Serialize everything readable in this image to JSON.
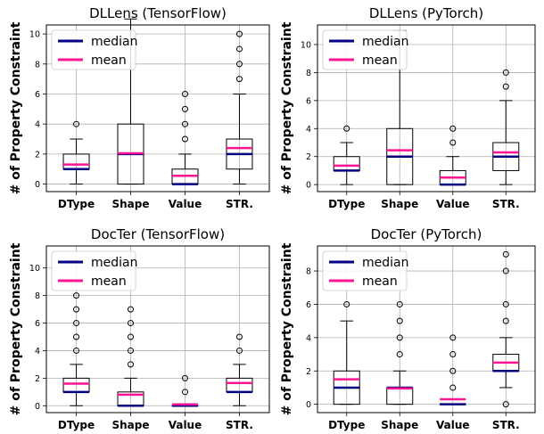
{
  "chart_data": [
    {
      "type": "box",
      "title": "DLLens (TensorFlow)",
      "ylabel": "# of Property Constraint",
      "categories": [
        "DType",
        "Shape",
        "Value",
        "STR."
      ],
      "yticks": [
        0,
        2,
        4,
        6,
        8,
        10
      ],
      "ylim": [
        -0.5,
        10.6
      ],
      "grid": true,
      "legend": {
        "position": "top-left",
        "entries": [
          {
            "label": "median",
            "color": "#000080"
          },
          {
            "label": "mean",
            "color": "#ff1493"
          }
        ]
      },
      "boxes": [
        {
          "q1": 1,
          "median": 1,
          "mean": 1.3,
          "q3": 2,
          "whisker_low": 0,
          "whisker_high": 3,
          "outliers": [
            4
          ]
        },
        {
          "q1": 0,
          "median": 2,
          "mean": 2.05,
          "q3": 4,
          "whisker_low": 0,
          "whisker_high": 11,
          "outliers": []
        },
        {
          "q1": 0,
          "median": 0,
          "mean": 0.55,
          "q3": 1,
          "whisker_low": 0,
          "whisker_high": 2,
          "outliers": [
            3,
            4,
            5,
            6
          ]
        },
        {
          "q1": 1,
          "median": 2,
          "mean": 2.4,
          "q3": 3,
          "whisker_low": 0,
          "whisker_high": 6,
          "outliers": [
            7,
            8,
            9,
            10
          ]
        }
      ]
    },
    {
      "type": "box",
      "title": "DLLens (PyTorch)",
      "ylabel": "# of Property Constraint",
      "categories": [
        "DType",
        "Shape",
        "Value",
        "STR."
      ],
      "yticks": [
        0,
        2,
        4,
        6,
        8,
        10
      ],
      "ylim": [
        -0.5,
        11.4
      ],
      "grid": true,
      "legend": {
        "position": "top-left",
        "entries": [
          {
            "label": "median",
            "color": "#000080"
          },
          {
            "label": "mean",
            "color": "#ff1493"
          }
        ]
      },
      "boxes": [
        {
          "q1": 1,
          "median": 1,
          "mean": 1.35,
          "q3": 2,
          "whisker_low": 0,
          "whisker_high": 3,
          "outliers": [
            4
          ]
        },
        {
          "q1": 0,
          "median": 2,
          "mean": 2.45,
          "q3": 4,
          "whisker_low": 0,
          "whisker_high": 11,
          "outliers": []
        },
        {
          "q1": 0,
          "median": 0,
          "mean": 0.5,
          "q3": 1,
          "whisker_low": 0,
          "whisker_high": 2,
          "outliers": [
            3,
            4
          ]
        },
        {
          "q1": 1,
          "median": 2,
          "mean": 2.3,
          "q3": 3,
          "whisker_low": 0,
          "whisker_high": 6,
          "outliers": [
            7,
            8
          ]
        }
      ]
    },
    {
      "type": "box",
      "title": "DocTer (TensorFlow)",
      "ylabel": "# of Property Constraint",
      "categories": [
        "DType",
        "Shape",
        "Value",
        "STR."
      ],
      "yticks": [
        0,
        2,
        4,
        6,
        8,
        10
      ],
      "ylim": [
        -0.5,
        11.6
      ],
      "grid": true,
      "legend": {
        "position": "top-left",
        "entries": [
          {
            "label": "median",
            "color": "#000080"
          },
          {
            "label": "mean",
            "color": "#ff1493"
          }
        ]
      },
      "boxes": [
        {
          "q1": 1,
          "median": 1,
          "mean": 1.6,
          "q3": 2,
          "whisker_low": 0,
          "whisker_high": 3,
          "outliers": [
            4,
            5,
            6,
            7,
            8
          ]
        },
        {
          "q1": 0,
          "median": 0,
          "mean": 0.8,
          "q3": 1,
          "whisker_low": 0,
          "whisker_high": 2,
          "outliers": [
            3,
            4,
            5,
            6,
            7
          ]
        },
        {
          "q1": 0,
          "median": 0,
          "mean": 0.1,
          "q3": 0,
          "whisker_low": 0,
          "whisker_high": 0,
          "outliers": [
            1,
            2
          ]
        },
        {
          "q1": 1,
          "median": 1,
          "mean": 1.65,
          "q3": 2,
          "whisker_low": 0,
          "whisker_high": 3,
          "outliers": [
            4,
            5
          ]
        }
      ]
    },
    {
      "type": "box",
      "title": "DocTer (PyTorch)",
      "ylabel": "# of Property Constraint",
      "categories": [
        "DType",
        "Shape",
        "Value",
        "STR."
      ],
      "yticks": [
        0,
        2,
        4,
        6,
        8
      ],
      "ylim": [
        -0.5,
        9.5
      ],
      "grid": true,
      "legend": {
        "position": "top-left",
        "entries": [
          {
            "label": "median",
            "color": "#000080"
          },
          {
            "label": "mean",
            "color": "#ff1493"
          }
        ]
      },
      "boxes": [
        {
          "q1": 0,
          "median": 1,
          "mean": 1.5,
          "q3": 2,
          "whisker_low": 0,
          "whisker_high": 5,
          "outliers": [
            6
          ]
        },
        {
          "q1": 0,
          "median": 1,
          "mean": 0.95,
          "q3": 1,
          "whisker_low": 0,
          "whisker_high": 2,
          "outliers": [
            3,
            4,
            5,
            6
          ]
        },
        {
          "q1": 0,
          "median": 0,
          "mean": 0.3,
          "q3": 0,
          "whisker_low": 0,
          "whisker_high": 0,
          "outliers": [
            1,
            2,
            3,
            4
          ]
        },
        {
          "q1": 2,
          "median": 2,
          "mean": 2.5,
          "q3": 3,
          "whisker_low": 1,
          "whisker_high": 4,
          "outliers": [
            0,
            5,
            6,
            8,
            9
          ]
        }
      ]
    }
  ],
  "legend_labels": {
    "median": "median",
    "mean": "mean"
  }
}
